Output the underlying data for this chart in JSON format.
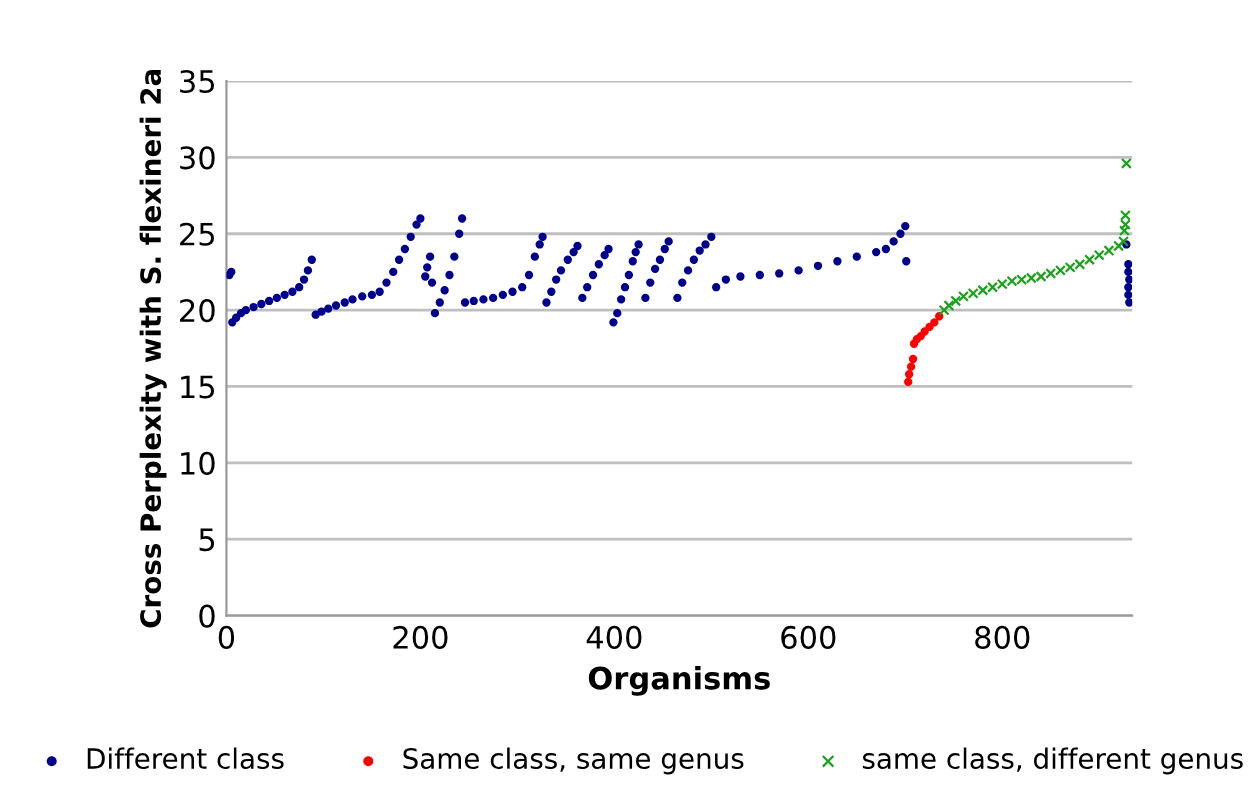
{
  "chart_data": {
    "type": "scatter",
    "xlabel": "Organisms",
    "ylabel": "Cross Perplexity with S. flexineri 2a",
    "xlim": [
      0,
      934
    ],
    "xticks": [
      0,
      200,
      400,
      600,
      800
    ],
    "ylim": [
      0,
      35
    ],
    "yticks": [
      0,
      5,
      10,
      15,
      20,
      25,
      30,
      35
    ],
    "grid": "y",
    "legend": "bottom",
    "series": [
      {
        "name": "Different class",
        "color": "#00008b",
        "marker": "circle",
        "x": [
          3,
          5,
          6,
          10,
          15,
          20,
          28,
          36,
          44,
          52,
          60,
          68,
          75,
          80,
          84,
          88,
          92,
          98,
          105,
          113,
          122,
          130,
          140,
          150,
          158,
          165,
          172,
          178,
          184,
          190,
          196,
          200,
          205,
          207,
          210,
          212,
          215,
          220,
          225,
          230,
          235,
          240,
          243,
          246,
          255,
          265,
          275,
          285,
          295,
          305,
          312,
          318,
          323,
          326,
          330,
          335,
          340,
          345,
          352,
          358,
          362,
          367,
          372,
          378,
          384,
          390,
          394,
          399,
          403,
          407,
          411,
          415,
          419,
          422,
          425,
          432,
          437,
          442,
          447,
          452,
          456,
          465,
          470,
          476,
          482,
          488,
          494,
          500,
          505,
          515,
          530,
          550,
          570,
          590,
          610,
          630,
          650,
          670,
          680,
          688,
          695,
          700,
          701,
          928,
          930,
          930,
          931,
          930,
          930,
          931
        ],
        "values": [
          22.3,
          22.5,
          19.2,
          19.5,
          19.8,
          20.0,
          20.2,
          20.4,
          20.6,
          20.8,
          21.0,
          21.2,
          21.5,
          22.0,
          22.6,
          23.3,
          19.7,
          19.9,
          20.1,
          20.3,
          20.5,
          20.7,
          20.9,
          21.0,
          21.2,
          21.8,
          22.5,
          23.3,
          24.0,
          24.8,
          25.6,
          26.0,
          22.2,
          22.8,
          23.5,
          21.8,
          19.8,
          20.5,
          21.3,
          22.3,
          23.5,
          25.0,
          26.0,
          20.5,
          20.6,
          20.7,
          20.8,
          21.0,
          21.2,
          21.5,
          22.3,
          23.5,
          24.3,
          24.8,
          20.5,
          21.2,
          22.0,
          22.6,
          23.3,
          23.8,
          24.2,
          20.8,
          21.5,
          22.3,
          23.0,
          23.6,
          24.0,
          19.2,
          19.8,
          20.7,
          21.5,
          22.3,
          23.2,
          23.8,
          24.3,
          20.8,
          21.8,
          22.7,
          23.3,
          24.0,
          24.5,
          20.8,
          21.8,
          22.6,
          23.3,
          23.9,
          24.3,
          24.8,
          21.5,
          22.0,
          22.2,
          22.3,
          22.4,
          22.6,
          22.9,
          23.2,
          23.5,
          23.8,
          24.0,
          24.5,
          25.0,
          25.5,
          23.2,
          24.3,
          23.0,
          22.5,
          22.0,
          21.5,
          21.0,
          20.5
        ]
      },
      {
        "name": "Same class, same genus",
        "color": "#ff0000",
        "marker": "circle",
        "x": [
          703,
          704,
          706,
          708,
          709,
          712,
          716,
          720,
          725,
          730,
          735
        ],
        "values": [
          15.3,
          15.8,
          16.3,
          16.8,
          17.8,
          18.1,
          18.3,
          18.6,
          18.9,
          19.2,
          19.6
        ]
      },
      {
        "name": "same class, different genus",
        "color": "#1aa31a",
        "marker": "cross",
        "x": [
          740,
          745,
          752,
          760,
          770,
          780,
          790,
          800,
          810,
          820,
          830,
          840,
          850,
          860,
          870,
          880,
          890,
          900,
          910,
          920,
          925,
          926,
          927,
          927,
          928
        ],
        "values": [
          20.0,
          20.3,
          20.6,
          20.9,
          21.1,
          21.3,
          21.5,
          21.7,
          21.9,
          22.0,
          22.1,
          22.2,
          22.4,
          22.6,
          22.8,
          23.0,
          23.3,
          23.6,
          23.9,
          24.2,
          24.5,
          25.2,
          25.6,
          26.2,
          29.6
        ]
      }
    ]
  }
}
